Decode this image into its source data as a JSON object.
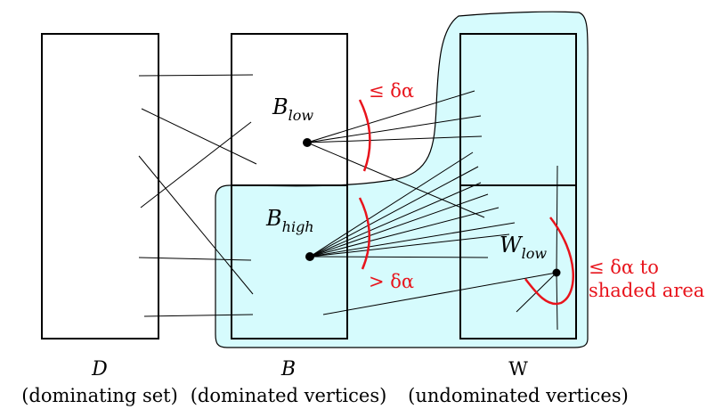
{
  "columns": {
    "D": {
      "name": "D",
      "caption": "(dominating set)"
    },
    "B": {
      "name": "B",
      "caption": "(dominated vertices)"
    },
    "W": {
      "name": "W",
      "caption": "(undominated vertices)"
    }
  },
  "labels": {
    "B_low_base": "B",
    "B_low_sub": "low",
    "B_high_base": "B",
    "B_high_sub": "high",
    "W_low_base": "W",
    "W_low_sub": "low"
  },
  "annotations": {
    "le_delta_alpha": "≤ δα",
    "gt_delta_alpha": "> δα",
    "shaded_line1": "≤ δα to",
    "shaded_line2": "shaded area"
  },
  "colors": {
    "shaded_fill": "#d6fbfd",
    "accent": "#e8141c",
    "line": "#000000"
  }
}
